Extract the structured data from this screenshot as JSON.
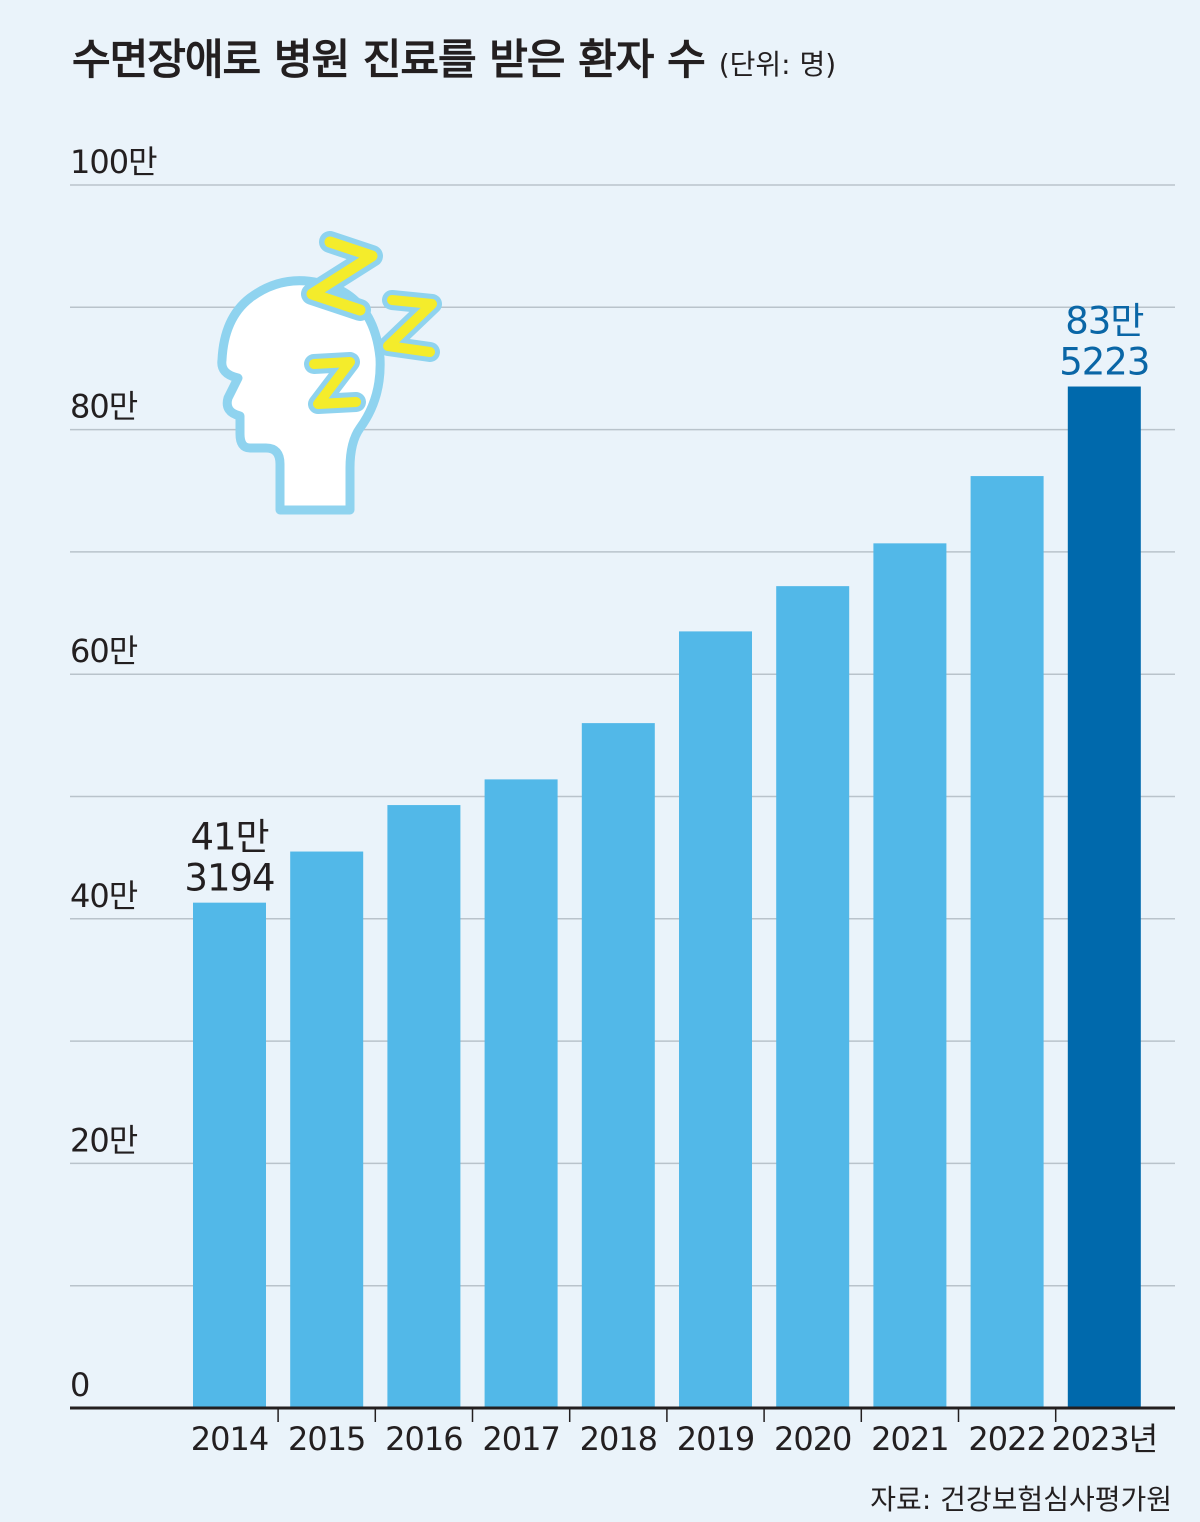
{
  "title": "수면장애로 병원 진료를 받은 환자 수",
  "unit": "(단위: 명)",
  "source": "자료: 건강보험심사평가원",
  "icon": "sleeping-head-icon",
  "colors": {
    "bar": "#52b8e8",
    "highlight_bar": "#0069ac",
    "highlight_label": "#0a66a6",
    "grid": "#b9c3cb",
    "axis": "#231f20",
    "background": "#eaf3fa"
  },
  "chart_data": {
    "type": "bar",
    "title": "수면장애로 병원 진료를 받은 환자 수",
    "unit": "(단위: 명)",
    "categories": [
      "2014",
      "2015",
      "2016",
      "2017",
      "2018",
      "2019",
      "2020",
      "2021",
      "2022",
      "2023년"
    ],
    "values": [
      413194,
      455000,
      493000,
      514000,
      560000,
      635000,
      672000,
      707000,
      762000,
      835223
    ],
    "ylim": [
      0,
      1000000
    ],
    "yticks": [
      {
        "value": 0,
        "label": "0"
      },
      {
        "value": 200000,
        "label": "20만"
      },
      {
        "value": 400000,
        "label": "40만"
      },
      {
        "value": 600000,
        "label": "60만"
      },
      {
        "value": 800000,
        "label": "80만"
      },
      {
        "value": 1000000,
        "label": "100만"
      }
    ],
    "gridlines": [
      100000,
      200000,
      300000,
      400000,
      500000,
      600000,
      700000,
      800000,
      900000,
      1000000
    ],
    "grid": true,
    "highlight_index": 9,
    "annotations": [
      {
        "index": 0,
        "lines": [
          "41만",
          "3194"
        ]
      },
      {
        "index": 9,
        "lines": [
          "83만",
          "5223"
        ]
      }
    ]
  }
}
